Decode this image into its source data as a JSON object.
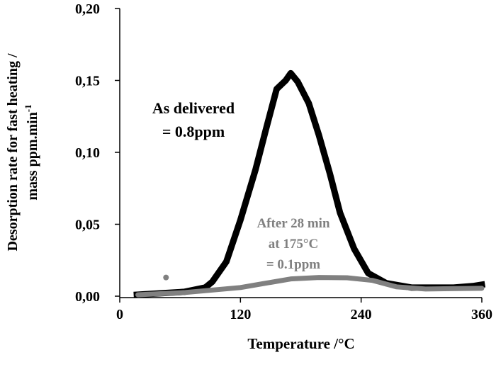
{
  "chart_data": {
    "type": "line",
    "title": "",
    "xlabel": "Temperature /°C",
    "ylabel_line1": "Desorption rate for fast heating /",
    "ylabel_line2": "mass ppm.min",
    "ylabel_sup": "-1",
    "xlim": [
      0,
      360
    ],
    "ylim": [
      0,
      0.2
    ],
    "x_ticks": [
      0,
      120,
      240,
      360
    ],
    "x_tick_labels": [
      "0",
      "120",
      "240",
      "360"
    ],
    "y_ticks": [
      0,
      0.05,
      0.1,
      0.15,
      0.2
    ],
    "y_tick_labels": [
      "0,00",
      "0,05",
      "0,10",
      "0,15",
      "0,20"
    ],
    "grid": false,
    "series": [
      {
        "name": "As delivered",
        "color": "#000000",
        "annotation": [
          "As delivered",
          "= 0.8ppm"
        ],
        "x": [
          17,
          40,
          64,
          85,
          92,
          106,
          120,
          135,
          145,
          156,
          165,
          170,
          177,
          188,
          198,
          209,
          219,
          233,
          247,
          265,
          290,
          332,
          351,
          360
        ],
        "y": [
          0.001,
          0.002,
          0.003,
          0.006,
          0.01,
          0.024,
          0.053,
          0.088,
          0.115,
          0.144,
          0.15,
          0.155,
          0.149,
          0.134,
          0.112,
          0.085,
          0.058,
          0.033,
          0.016,
          0.009,
          0.006,
          0.006,
          0.007,
          0.008
        ]
      },
      {
        "name": "After 28 min at 175°C",
        "color": "#808080",
        "annotation": [
          "After 28 min",
          "at 175°C",
          "= 0.1ppm"
        ],
        "x": [
          18,
          64,
          120,
          145,
          170,
          198,
          226,
          251,
          275,
          304,
          360
        ],
        "y": [
          0.001,
          0.0025,
          0.006,
          0.009,
          0.012,
          0.013,
          0.0128,
          0.011,
          0.0065,
          0.005,
          0.0055
        ],
        "outlier": {
          "x": 46,
          "y": 0.013
        }
      }
    ]
  }
}
